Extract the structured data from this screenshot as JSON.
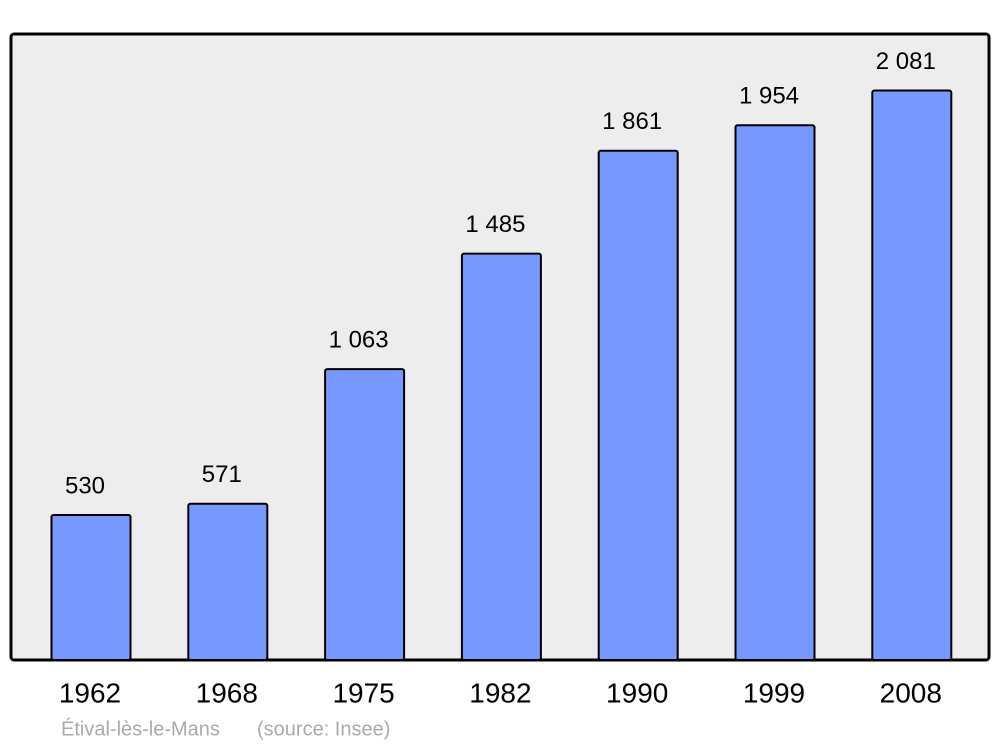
{
  "chart_data": {
    "type": "bar",
    "categories": [
      "1962",
      "1968",
      "1975",
      "1982",
      "1990",
      "1999",
      "2008"
    ],
    "values": [
      530,
      571,
      1063,
      1485,
      1861,
      1954,
      2081
    ],
    "value_labels": [
      "530",
      "571",
      "1 063",
      "1 485",
      "1 861",
      "1 954",
      "2 081"
    ],
    "color": "#7799ff",
    "ylim": [
      0,
      2284
    ],
    "caption": "Étival-lès-le-Mans",
    "source": "(source: Insee)"
  }
}
